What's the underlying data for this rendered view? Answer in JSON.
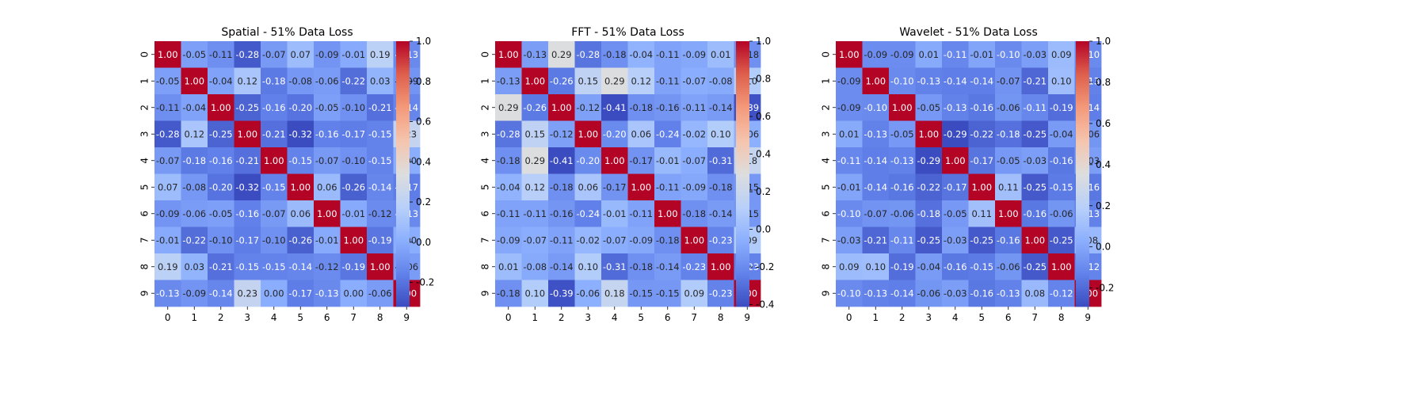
{
  "chart_data": [
    {
      "type": "heatmap",
      "title": "Spatial - 51% Data Loss",
      "xlabel": "",
      "ylabel": "",
      "x_ticks": [
        "0",
        "1",
        "2",
        "3",
        "4",
        "5",
        "6",
        "7",
        "8",
        "9"
      ],
      "y_ticks": [
        "0",
        "1",
        "2",
        "3",
        "4",
        "5",
        "6",
        "7",
        "8",
        "9"
      ],
      "colormap": "coolwarm",
      "vmin": -0.32,
      "vmax": 1.0,
      "colorbar_ticks": [
        -0.2,
        0.0,
        0.2,
        0.4,
        0.6,
        0.8,
        1.0
      ],
      "matrix": [
        [
          1.0,
          -0.05,
          -0.11,
          -0.28,
          -0.07,
          0.07,
          -0.09,
          -0.01,
          0.19,
          -0.13
        ],
        [
          -0.05,
          1.0,
          -0.04,
          0.12,
          -0.18,
          -0.08,
          -0.06,
          -0.22,
          0.03,
          -0.09
        ],
        [
          -0.11,
          -0.04,
          1.0,
          -0.25,
          -0.16,
          -0.2,
          -0.05,
          -0.1,
          -0.21,
          -0.14
        ],
        [
          -0.28,
          0.12,
          -0.25,
          1.0,
          -0.21,
          -0.32,
          -0.16,
          -0.17,
          -0.15,
          0.23
        ],
        [
          -0.07,
          -0.18,
          -0.16,
          -0.21,
          1.0,
          -0.15,
          -0.07,
          -0.1,
          -0.15,
          0.0
        ],
        [
          0.07,
          -0.08,
          -0.2,
          -0.32,
          -0.15,
          1.0,
          0.06,
          -0.26,
          -0.14,
          -0.17
        ],
        [
          -0.09,
          -0.06,
          -0.05,
          -0.16,
          -0.07,
          0.06,
          1.0,
          -0.01,
          -0.12,
          -0.13
        ],
        [
          -0.01,
          -0.22,
          -0.1,
          -0.17,
          -0.1,
          -0.26,
          -0.01,
          1.0,
          -0.19,
          0.0
        ],
        [
          0.19,
          0.03,
          -0.21,
          -0.15,
          -0.15,
          -0.14,
          -0.12,
          -0.19,
          1.0,
          -0.06
        ],
        [
          -0.13,
          -0.09,
          -0.14,
          0.23,
          0.0,
          -0.17,
          -0.13,
          0.0,
          -0.06,
          1.0
        ]
      ]
    },
    {
      "type": "heatmap",
      "title": "FFT - 51% Data Loss",
      "xlabel": "",
      "ylabel": "",
      "x_ticks": [
        "0",
        "1",
        "2",
        "3",
        "4",
        "5",
        "6",
        "7",
        "8",
        "9"
      ],
      "y_ticks": [
        "0",
        "1",
        "2",
        "3",
        "4",
        "5",
        "6",
        "7",
        "8",
        "9"
      ],
      "colormap": "coolwarm",
      "vmin": -0.41,
      "vmax": 1.0,
      "colorbar_ticks": [
        -0.4,
        -0.2,
        0.0,
        0.2,
        0.4,
        0.6,
        0.8,
        1.0
      ],
      "matrix": [
        [
          1.0,
          -0.13,
          0.29,
          -0.28,
          -0.18,
          -0.04,
          -0.11,
          -0.09,
          0.01,
          -0.18
        ],
        [
          -0.13,
          1.0,
          -0.26,
          0.15,
          0.29,
          0.12,
          -0.11,
          -0.07,
          -0.08,
          0.1
        ],
        [
          0.29,
          -0.26,
          1.0,
          -0.12,
          -0.41,
          -0.18,
          -0.16,
          -0.11,
          -0.14,
          -0.39
        ],
        [
          -0.28,
          0.15,
          -0.12,
          1.0,
          -0.2,
          0.06,
          -0.24,
          -0.02,
          0.1,
          -0.06
        ],
        [
          -0.18,
          0.29,
          -0.41,
          -0.2,
          1.0,
          -0.17,
          -0.01,
          -0.07,
          -0.31,
          0.18
        ],
        [
          -0.04,
          0.12,
          -0.18,
          0.06,
          -0.17,
          1.0,
          -0.11,
          -0.09,
          -0.18,
          -0.15
        ],
        [
          -0.11,
          -0.11,
          -0.16,
          -0.24,
          -0.01,
          -0.11,
          1.0,
          -0.18,
          -0.14,
          -0.15
        ],
        [
          -0.09,
          -0.07,
          -0.11,
          -0.02,
          -0.07,
          -0.09,
          -0.18,
          1.0,
          -0.23,
          0.09
        ],
        [
          0.01,
          -0.08,
          -0.14,
          0.1,
          -0.31,
          -0.18,
          -0.14,
          -0.23,
          1.0,
          -0.23
        ],
        [
          -0.18,
          0.1,
          -0.39,
          -0.06,
          0.18,
          -0.15,
          -0.15,
          0.09,
          -0.23,
          1.0
        ]
      ]
    },
    {
      "type": "heatmap",
      "title": "Wavelet - 51% Data Loss",
      "xlabel": "",
      "ylabel": "",
      "x_ticks": [
        "0",
        "1",
        "2",
        "3",
        "4",
        "5",
        "6",
        "7",
        "8",
        "9"
      ],
      "y_ticks": [
        "0",
        "1",
        "2",
        "3",
        "4",
        "5",
        "6",
        "7",
        "8",
        "9"
      ],
      "colormap": "coolwarm",
      "vmin": -0.29,
      "vmax": 1.0,
      "colorbar_ticks": [
        -0.2,
        0.0,
        0.2,
        0.4,
        0.6,
        0.8,
        1.0
      ],
      "matrix": [
        [
          1.0,
          -0.09,
          -0.09,
          0.01,
          -0.11,
          -0.01,
          -0.1,
          -0.03,
          0.09,
          -0.1
        ],
        [
          -0.09,
          1.0,
          -0.1,
          -0.13,
          -0.14,
          -0.14,
          -0.07,
          -0.21,
          0.1,
          -0.13
        ],
        [
          -0.09,
          -0.1,
          1.0,
          -0.05,
          -0.13,
          -0.16,
          -0.06,
          -0.11,
          -0.19,
          -0.14
        ],
        [
          0.01,
          -0.13,
          -0.05,
          1.0,
          -0.29,
          -0.22,
          -0.18,
          -0.25,
          -0.04,
          -0.06
        ],
        [
          -0.11,
          -0.14,
          -0.13,
          -0.29,
          1.0,
          -0.17,
          -0.05,
          -0.03,
          -0.16,
          -0.03
        ],
        [
          -0.01,
          -0.14,
          -0.16,
          -0.22,
          -0.17,
          1.0,
          0.11,
          -0.25,
          -0.15,
          -0.16
        ],
        [
          -0.1,
          -0.07,
          -0.06,
          -0.18,
          -0.05,
          0.11,
          1.0,
          -0.16,
          -0.06,
          -0.13
        ],
        [
          -0.03,
          -0.21,
          -0.11,
          -0.25,
          -0.03,
          -0.25,
          -0.16,
          1.0,
          -0.25,
          0.08
        ],
        [
          0.09,
          0.1,
          -0.19,
          -0.04,
          -0.16,
          -0.15,
          -0.06,
          -0.25,
          1.0,
          -0.12
        ],
        [
          -0.1,
          -0.13,
          -0.14,
          -0.06,
          -0.03,
          -0.16,
          -0.13,
          0.08,
          -0.12,
          1.0
        ]
      ]
    }
  ]
}
